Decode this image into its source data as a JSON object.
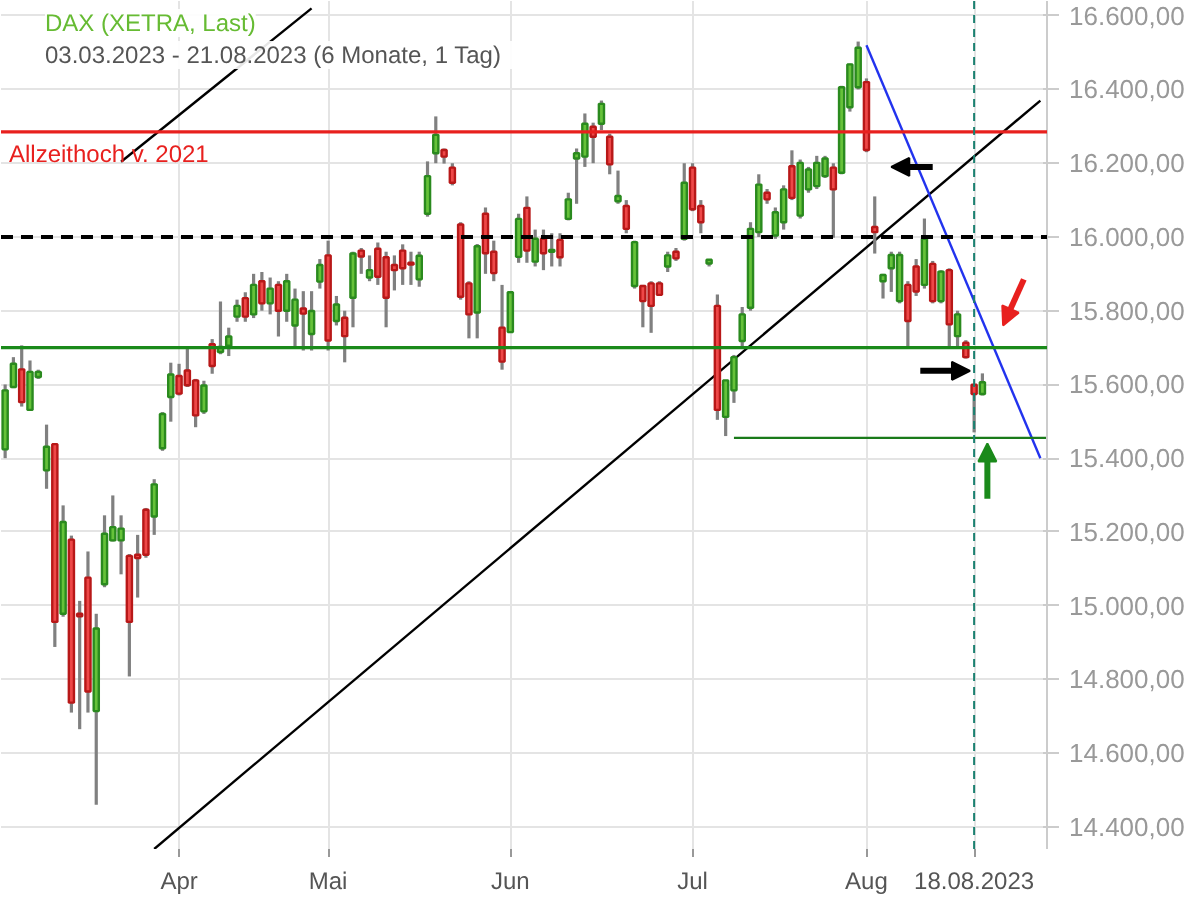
{
  "chart_data": {
    "type": "candlestick",
    "title": "DAX (XETRA, Last)",
    "subtitle": "03.03.2023 - 21.08.2023   (6 Monate, 1 Tag)",
    "categories": [
      null,
      null,
      null,
      null,
      null,
      null,
      null,
      null,
      null,
      null,
      null,
      null,
      null,
      null,
      null,
      null,
      null,
      null,
      null,
      null,
      null,
      "Apr",
      null,
      null,
      null,
      null,
      null,
      null,
      null,
      null,
      null,
      null,
      null,
      null,
      null,
      null,
      null,
      null,
      null,
      "Mai",
      null,
      null,
      null,
      null,
      null,
      null,
      null,
      null,
      null,
      null,
      null,
      null,
      null,
      null,
      null,
      null,
      null,
      null,
      null,
      null,
      null,
      "Jun",
      null,
      null,
      null,
      null,
      null,
      null,
      null,
      null,
      null,
      null,
      null,
      null,
      null,
      null,
      null,
      null,
      null,
      null,
      null,
      null,
      null,
      "Jul",
      null,
      null,
      null,
      null,
      null,
      null,
      null,
      null,
      null,
      null,
      null,
      null,
      null,
      null,
      null,
      null,
      null,
      null,
      null,
      null,
      "Aug",
      null,
      null,
      null,
      null,
      null,
      null,
      null,
      null,
      null,
      null,
      null,
      null,
      "18.08.2023",
      null,
      null,
      null,
      null,
      null,
      null,
      null,
      null,
      null
    ],
    "ohlc": [
      [
        15424,
        15600,
        15400,
        15584
      ],
      [
        15593,
        15674,
        15590,
        15656
      ],
      [
        15641,
        15706,
        15540,
        15552
      ],
      [
        15531,
        15665,
        15530,
        15634
      ],
      [
        15620,
        15640,
        15615,
        15634
      ],
      [
        15367,
        15491,
        15317,
        15431
      ],
      [
        15438,
        15440,
        14888,
        14956
      ],
      [
        14978,
        15272,
        14970,
        15227
      ],
      [
        15179,
        15190,
        14710,
        14737
      ],
      [
        14978,
        15013,
        14665,
        14971
      ],
      [
        15076,
        15147,
        14710,
        14767
      ],
      [
        14714,
        14978,
        14460,
        14938
      ],
      [
        15058,
        15245,
        15050,
        15195
      ],
      [
        15177,
        15299,
        15174,
        15213
      ],
      [
        15177,
        15245,
        15085,
        15209
      ],
      [
        15135,
        15140,
        14808,
        14956
      ],
      [
        15138,
        15192,
        15022,
        15129
      ],
      [
        15260,
        15265,
        15130,
        15138
      ],
      [
        15242,
        15343,
        15192,
        15329
      ],
      [
        15427,
        15525,
        15420,
        15520
      ],
      [
        15566,
        15659,
        15499,
        15627
      ],
      [
        15623,
        15656,
        15570,
        15575
      ],
      [
        15638,
        15700,
        15593,
        15598
      ],
      [
        15611,
        15615,
        15484,
        15516
      ],
      [
        15527,
        15610,
        15520,
        15597
      ],
      [
        15709,
        15723,
        15629,
        15650
      ],
      [
        15688,
        15825,
        15682,
        15702
      ],
      [
        15705,
        15754,
        15677,
        15730
      ],
      [
        15784,
        15830,
        15770,
        15813
      ],
      [
        15834,
        15850,
        15770,
        15784
      ],
      [
        15790,
        15900,
        15780,
        15870
      ],
      [
        15880,
        15905,
        15800,
        15820
      ],
      [
        15820,
        15890,
        15790,
        15860
      ],
      [
        15870,
        15880,
        15730,
        15800
      ],
      [
        15800,
        15900,
        15770,
        15880
      ],
      [
        15760,
        15860,
        15700,
        15830
      ],
      [
        15806,
        15853,
        15692,
        15792
      ],
      [
        15737,
        15853,
        15692,
        15799
      ],
      [
        15879,
        15940,
        15860,
        15924
      ],
      [
        15950,
        15990,
        15692,
        15719
      ],
      [
        15772,
        15840,
        15760,
        15817
      ],
      [
        15781,
        15800,
        15660,
        15731
      ],
      [
        15835,
        15960,
        15755,
        15955
      ],
      [
        15963,
        15970,
        15900,
        15947
      ],
      [
        15890,
        15950,
        15880,
        15910
      ],
      [
        15968,
        15985,
        15870,
        15892
      ],
      [
        15945,
        15960,
        15755,
        15835
      ],
      [
        15924,
        15950,
        15855,
        15910
      ],
      [
        15963,
        15980,
        15870,
        15915
      ],
      [
        15930,
        15960,
        15870,
        15925
      ],
      [
        15885,
        15960,
        15865,
        15949
      ],
      [
        16063,
        16205,
        16055,
        16165
      ],
      [
        16227,
        16327,
        16200,
        16277
      ],
      [
        16236,
        16240,
        16199,
        16218
      ],
      [
        16188,
        16200,
        16140,
        16147
      ],
      [
        16034,
        16040,
        15830,
        15838
      ],
      [
        15874,
        15880,
        15725,
        15790
      ],
      [
        15795,
        15981,
        15725,
        15975
      ],
      [
        16063,
        16080,
        15900,
        15956
      ],
      [
        15960,
        15990,
        15880,
        15902
      ],
      [
        15754,
        15870,
        15640,
        15662
      ],
      [
        15742,
        15853,
        15740,
        15850
      ],
      [
        15946,
        16063,
        15930,
        16049
      ],
      [
        16079,
        16110,
        15930,
        15963
      ],
      [
        15933,
        16020,
        15920,
        15995
      ],
      [
        15995,
        16020,
        15910,
        15956
      ],
      [
        15960,
        16010,
        15920,
        15965
      ],
      [
        15992,
        16010,
        15920,
        15945
      ],
      [
        16049,
        16120,
        16045,
        16102
      ],
      [
        16213,
        16240,
        16090,
        16227
      ],
      [
        16218,
        16335,
        16190,
        16307
      ],
      [
        16299,
        16310,
        16200,
        16272
      ],
      [
        16307,
        16370,
        16290,
        16361
      ],
      [
        16272,
        16280,
        16170,
        16197
      ],
      [
        16097,
        16180,
        16090,
        16111
      ],
      [
        16084,
        16100,
        16010,
        16022
      ],
      [
        15867,
        15990,
        15860,
        15986
      ],
      [
        15867,
        15870,
        15755,
        15826
      ],
      [
        15874,
        15880,
        15740,
        15813
      ],
      [
        15874,
        15880,
        15840,
        15843
      ],
      [
        15920,
        15960,
        15905,
        15950
      ],
      [
        15960,
        15970,
        15935,
        15942
      ],
      [
        15995,
        16200,
        15990,
        16147
      ],
      [
        16188,
        16200,
        16070,
        16075
      ],
      [
        16084,
        16100,
        16010,
        16040
      ],
      [
        15928,
        15940,
        15920,
        15938
      ],
      [
        15813,
        15844,
        15504,
        15531
      ],
      [
        15512,
        15611,
        15460,
        15611
      ],
      [
        15584,
        15680,
        15550,
        15674
      ],
      [
        15718,
        15810,
        15700,
        15790
      ],
      [
        15808,
        16040,
        15800,
        16022
      ],
      [
        16013,
        16170,
        16000,
        16142
      ],
      [
        16120,
        16130,
        16090,
        16102
      ],
      [
        16004,
        16080,
        15995,
        16067
      ],
      [
        16040,
        16140,
        16020,
        16129
      ],
      [
        16192,
        16235,
        16100,
        16106
      ],
      [
        16058,
        16210,
        16050,
        16201
      ],
      [
        16129,
        16190,
        16120,
        16183
      ],
      [
        16138,
        16220,
        16130,
        16201
      ],
      [
        16165,
        16220,
        16160,
        16213
      ],
      [
        16188,
        16200,
        15998,
        16129
      ],
      [
        16174,
        16410,
        16170,
        16406
      ],
      [
        16352,
        16470,
        16340,
        16468
      ],
      [
        16406,
        16530,
        16400,
        16513
      ],
      [
        16420,
        16430,
        16230,
        16236
      ],
      [
        16027,
        16110,
        15955,
        16013
      ],
      [
        15880,
        15900,
        15833,
        15897
      ],
      [
        15915,
        15960,
        15851,
        15951
      ],
      [
        15826,
        15960,
        15820,
        15951
      ],
      [
        15870,
        15880,
        15704,
        15772
      ],
      [
        15920,
        15940,
        15840,
        15852
      ],
      [
        15870,
        16050,
        15860,
        15995
      ],
      [
        15927,
        15935,
        15820,
        15826
      ],
      [
        15826,
        15910,
        15820,
        15906
      ],
      [
        15910,
        15915,
        15704,
        15763
      ],
      [
        15731,
        15800,
        15704,
        15790
      ],
      [
        15713,
        15720,
        15670,
        15674
      ],
      [
        15599,
        15600,
        15470,
        15574
      ],
      [
        15574,
        15630,
        15570,
        15606
      ],
      null,
      null,
      null,
      null,
      null,
      null,
      null,
      null
    ],
    "series": [
      {
        "type": "line",
        "color": "#000000",
        "values": [
          null,
          null,
          null,
          null,
          null,
          null,
          null,
          null,
          null,
          null,
          null,
          null,
          null,
          null,
          null,
          null,
          null,
          null,
          14340,
          null,
          null,
          null,
          null,
          null,
          null,
          null,
          null,
          null,
          null,
          null,
          null,
          null,
          null,
          null,
          null,
          null,
          null,
          null,
          null,
          null,
          null,
          null,
          null,
          null,
          null,
          null,
          null,
          null,
          null,
          null,
          null,
          null,
          null,
          null,
          null,
          null,
          null,
          null,
          null,
          null,
          null,
          null,
          null,
          null,
          null,
          null,
          null,
          null,
          null,
          null,
          null,
          null,
          null,
          null,
          null,
          null,
          null,
          null,
          null,
          null,
          null,
          null,
          null,
          null,
          null,
          null,
          null,
          null,
          null,
          null,
          null,
          null,
          null,
          null,
          null,
          null,
          null,
          null,
          null,
          null,
          null,
          null,
          null,
          null,
          null,
          null,
          null,
          null,
          null,
          null,
          null,
          null,
          null,
          null,
          null,
          null,
          null,
          null,
          null,
          null,
          null,
          null,
          null,
          null,
          null,
          16370,
          null
        ]
      },
      {
        "type": "line",
        "color": "#000000",
        "values": [
          null,
          null,
          null,
          null,
          null,
          null,
          null,
          null,
          null,
          null,
          null,
          null,
          null,
          null,
          16204,
          null,
          null,
          null,
          null,
          null,
          null,
          null,
          null,
          null,
          null,
          null,
          null,
          null,
          null,
          null,
          null,
          null,
          null,
          null,
          null,
          null,
          null,
          16620,
          null,
          null,
          null,
          null,
          null,
          null,
          null,
          null,
          null,
          null,
          null,
          null,
          null,
          null,
          null,
          null,
          null,
          null,
          null,
          null,
          null,
          null,
          null,
          null,
          null,
          null,
          null,
          null,
          null,
          null,
          null,
          null,
          null,
          null,
          null,
          null,
          null,
          null,
          null,
          null,
          null,
          null,
          null,
          null,
          null,
          null,
          null,
          null,
          null,
          null,
          null,
          null,
          null,
          null,
          null,
          null,
          null,
          null,
          null,
          null,
          null,
          null,
          null,
          null,
          null,
          null,
          null,
          null,
          null,
          null,
          null,
          null,
          null,
          null,
          null,
          null,
          null,
          null,
          null,
          null,
          null,
          null,
          null,
          null,
          null,
          null,
          null,
          null,
          null
        ]
      },
      {
        "type": "line",
        "color": "#2233ee",
        "values": [
          null,
          null,
          null,
          null,
          null,
          null,
          null,
          null,
          null,
          null,
          null,
          null,
          null,
          null,
          null,
          null,
          null,
          null,
          null,
          null,
          null,
          null,
          null,
          null,
          null,
          null,
          null,
          null,
          null,
          null,
          null,
          null,
          null,
          null,
          null,
          null,
          null,
          null,
          null,
          null,
          null,
          null,
          null,
          null,
          null,
          null,
          null,
          null,
          null,
          null,
          null,
          null,
          null,
          null,
          null,
          null,
          null,
          null,
          null,
          null,
          null,
          null,
          null,
          null,
          null,
          null,
          null,
          null,
          null,
          null,
          null,
          null,
          null,
          null,
          null,
          null,
          null,
          null,
          null,
          null,
          null,
          null,
          null,
          null,
          null,
          null,
          null,
          null,
          null,
          null,
          null,
          null,
          null,
          null,
          null,
          null,
          null,
          null,
          null,
          null,
          null,
          null,
          null,
          null,
          16520,
          null,
          null,
          null,
          null,
          null,
          null,
          null,
          null,
          null,
          null,
          null,
          null,
          null,
          null,
          null,
          null,
          null,
          null,
          null,
          null,
          15400,
          null
        ]
      },
      {
        "type": "line",
        "color": "#1a7a1a",
        "values": [
          null,
          null,
          null,
          null,
          null,
          null,
          null,
          null,
          null,
          null,
          null,
          null,
          null,
          null,
          null,
          null,
          null,
          null,
          null,
          null,
          null,
          null,
          null,
          null,
          null,
          null,
          null,
          null,
          null,
          null,
          null,
          null,
          null,
          null,
          null,
          null,
          null,
          null,
          null,
          null,
          null,
          null,
          null,
          null,
          null,
          null,
          null,
          null,
          null,
          null,
          null,
          null,
          null,
          null,
          null,
          null,
          null,
          null,
          null,
          null,
          null,
          null,
          null,
          null,
          null,
          null,
          null,
          null,
          null,
          null,
          null,
          null,
          null,
          null,
          null,
          null,
          null,
          null,
          null,
          null,
          null,
          null,
          null,
          null,
          null,
          null,
          null,
          null,
          15455,
          null,
          null,
          null,
          null,
          null,
          null,
          null,
          null,
          null,
          null,
          null,
          null,
          null,
          null,
          null,
          null,
          null,
          null,
          null,
          null,
          null,
          null,
          null,
          null,
          null,
          null,
          null,
          null,
          null,
          null,
          null,
          null,
          null,
          null,
          null,
          null,
          null,
          15455
        ]
      }
    ],
    "ref_lines": [
      {
        "axis": "y",
        "value": 16285,
        "label": "Allzeithoch v. 2021",
        "color": "#e8201e",
        "line_style": "solid"
      },
      {
        "axis": "y",
        "value": 16000,
        "color": "#000000",
        "line_style": "dashed"
      },
      {
        "axis": "y",
        "value": 15700,
        "color": "#1a8a1a",
        "line_style": "solid"
      },
      {
        "axis": "x",
        "value": "18.08.2023",
        "color": "#1a8070",
        "line_style": "dashed"
      }
    ],
    "ylim": [
      14340,
      16640
    ],
    "yticks": [
      {
        "value": 14400,
        "label": "14.400,00"
      },
      {
        "value": 14600,
        "label": "14.600,00"
      },
      {
        "value": 14800,
        "label": "14.800,00"
      },
      {
        "value": 15000,
        "label": "15.000,00"
      },
      {
        "value": 15200,
        "label": "15.200,00"
      },
      {
        "value": 15400,
        "label": "15.400,00"
      },
      {
        "value": 15600,
        "label": "15.600,00"
      },
      {
        "value": 15800,
        "label": "15.800,00"
      },
      {
        "value": 16000,
        "label": "16.000,00"
      },
      {
        "value": 16200,
        "label": "16.200,00"
      },
      {
        "value": 16400,
        "label": "16.400,00"
      },
      {
        "value": 16600,
        "label": "16.600,00"
      }
    ],
    "grid": true
  }
}
